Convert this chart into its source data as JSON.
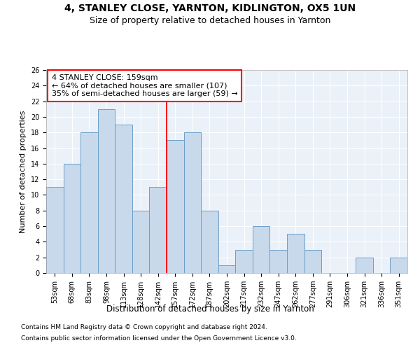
{
  "title1": "4, STANLEY CLOSE, YARNTON, KIDLINGTON, OX5 1UN",
  "title2": "Size of property relative to detached houses in Yarnton",
  "xlabel": "Distribution of detached houses by size in Yarnton",
  "ylabel": "Number of detached properties",
  "footnote1": "Contains HM Land Registry data © Crown copyright and database right 2024.",
  "footnote2": "Contains public sector information licensed under the Open Government Licence v3.0.",
  "categories": [
    "53sqm",
    "68sqm",
    "83sqm",
    "98sqm",
    "113sqm",
    "128sqm",
    "142sqm",
    "157sqm",
    "172sqm",
    "187sqm",
    "202sqm",
    "217sqm",
    "232sqm",
    "247sqm",
    "262sqm",
    "277sqm",
    "291sqm",
    "306sqm",
    "321sqm",
    "336sqm",
    "351sqm"
  ],
  "values": [
    11,
    14,
    18,
    21,
    19,
    8,
    11,
    17,
    18,
    8,
    1,
    3,
    6,
    3,
    5,
    3,
    0,
    0,
    2,
    0,
    2
  ],
  "bar_color": "#c9d9ec",
  "bar_edge_color": "#6b9ec8",
  "vline_color": "red",
  "annotation_title": "4 STANLEY CLOSE: 159sqm",
  "annotation_line1": "← 64% of detached houses are smaller (107)",
  "annotation_line2": "35% of semi-detached houses are larger (59) →",
  "ylim": [
    0,
    26
  ],
  "yticks": [
    0,
    2,
    4,
    6,
    8,
    10,
    12,
    14,
    16,
    18,
    20,
    22,
    24,
    26
  ],
  "bg_color": "#eaf1f8",
  "grid_color": "#ffffff",
  "title1_fontsize": 10,
  "title2_fontsize": 9,
  "xlabel_fontsize": 8.5,
  "ylabel_fontsize": 8,
  "tick_fontsize": 7,
  "annot_fontsize": 8,
  "footnote_fontsize": 6.5
}
